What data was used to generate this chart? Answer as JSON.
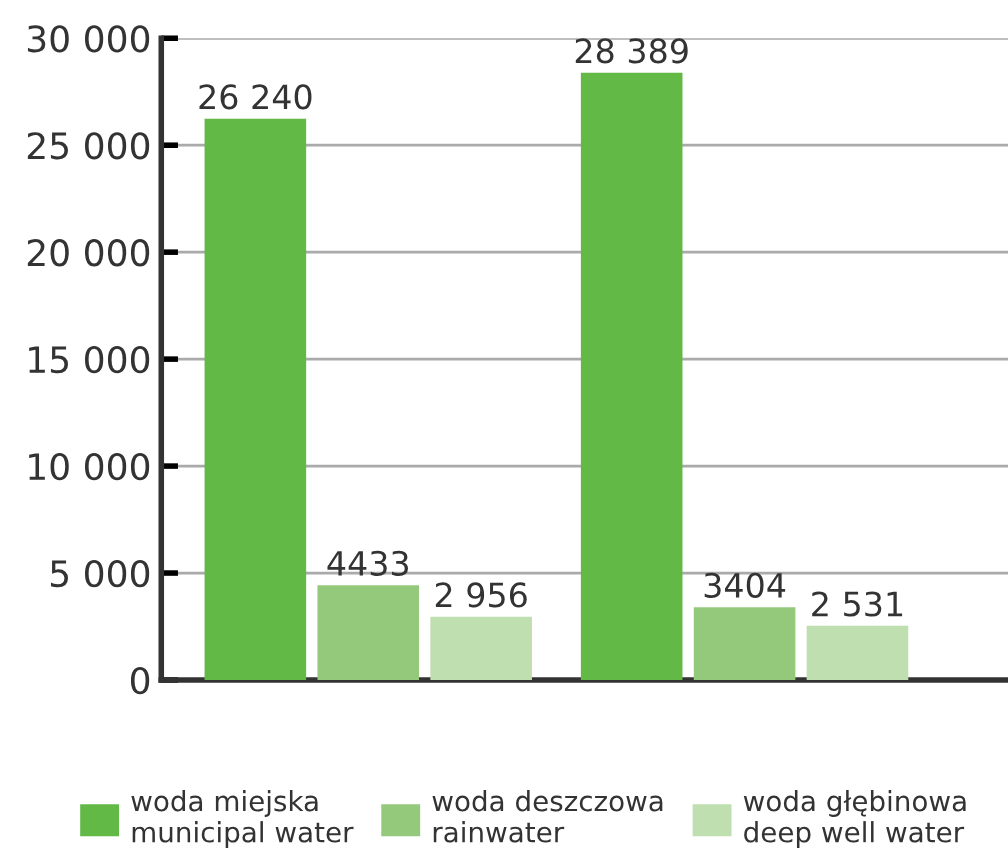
{
  "chart_data": {
    "type": "bar",
    "categories": [
      null,
      null
    ],
    "series": [
      {
        "name": "woda miejska\nmunicipal water",
        "color": "#62b946",
        "values": [
          26240,
          28389
        ],
        "value_labels": [
          "26 240",
          "28 389"
        ]
      },
      {
        "name": "woda deszczowa\nrainwater",
        "color": "#94c97b",
        "values": [
          4433,
          3404
        ],
        "value_labels": [
          "4433",
          "3404"
        ]
      },
      {
        "name": "woda głębinowa\ndeep well water",
        "color": "#c0dfb0",
        "values": [
          2956,
          2531
        ],
        "value_labels": [
          "2 956",
          "2 531"
        ]
      }
    ],
    "ylim": [
      0,
      30000
    ],
    "yticks": [
      {
        "value": 0,
        "label": "0"
      },
      {
        "value": 5000,
        "label": "5 000"
      },
      {
        "value": 10000,
        "label": "10 000"
      },
      {
        "value": 15000,
        "label": "15 000"
      },
      {
        "value": 20000,
        "label": "20 000"
      },
      {
        "value": 25000,
        "label": "25 000"
      },
      {
        "value": 30000,
        "label": "30 000"
      }
    ],
    "grid": "y",
    "legend": "bottom"
  }
}
